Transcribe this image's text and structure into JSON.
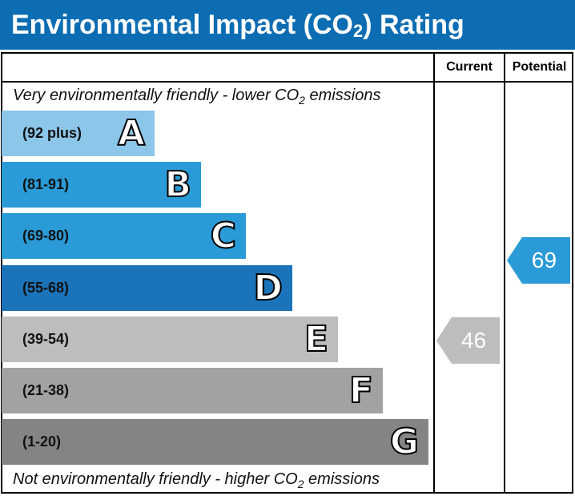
{
  "title": {
    "text": "Environmental Impact (CO",
    "sub": "2",
    "suffix": ") Rating"
  },
  "headers": {
    "current": "Current",
    "potential": "Potential"
  },
  "top_caption": {
    "text": "Very environmentally friendly - lower CO",
    "sub": "2",
    "suffix": " emissions"
  },
  "bottom_caption": {
    "text": "Not environmentally friendly - higher CO",
    "sub": "2",
    "suffix": " emissions"
  },
  "bands": [
    {
      "letter": "A",
      "range": "(92 plus)",
      "color": "#8cc6e8"
    },
    {
      "letter": "B",
      "range": "(81-91)",
      "color": "#2a9bd6"
    },
    {
      "letter": "C",
      "range": "(69-80)",
      "color": "#2a9bd6"
    },
    {
      "letter": "D",
      "range": "(55-68)",
      "color": "#1b73b9"
    },
    {
      "letter": "E",
      "range": "(39-54)",
      "color": "#bebdbb"
    },
    {
      "letter": "F",
      "range": "(21-38)",
      "color": "#a3a2a1"
    },
    {
      "letter": "G",
      "range": "(1-20)",
      "color": "#858483"
    }
  ],
  "current": {
    "value": "46",
    "band": "E",
    "color": "#bebdbb"
  },
  "potential": {
    "value": "69",
    "band": "C",
    "color": "#2a9bd6"
  }
}
